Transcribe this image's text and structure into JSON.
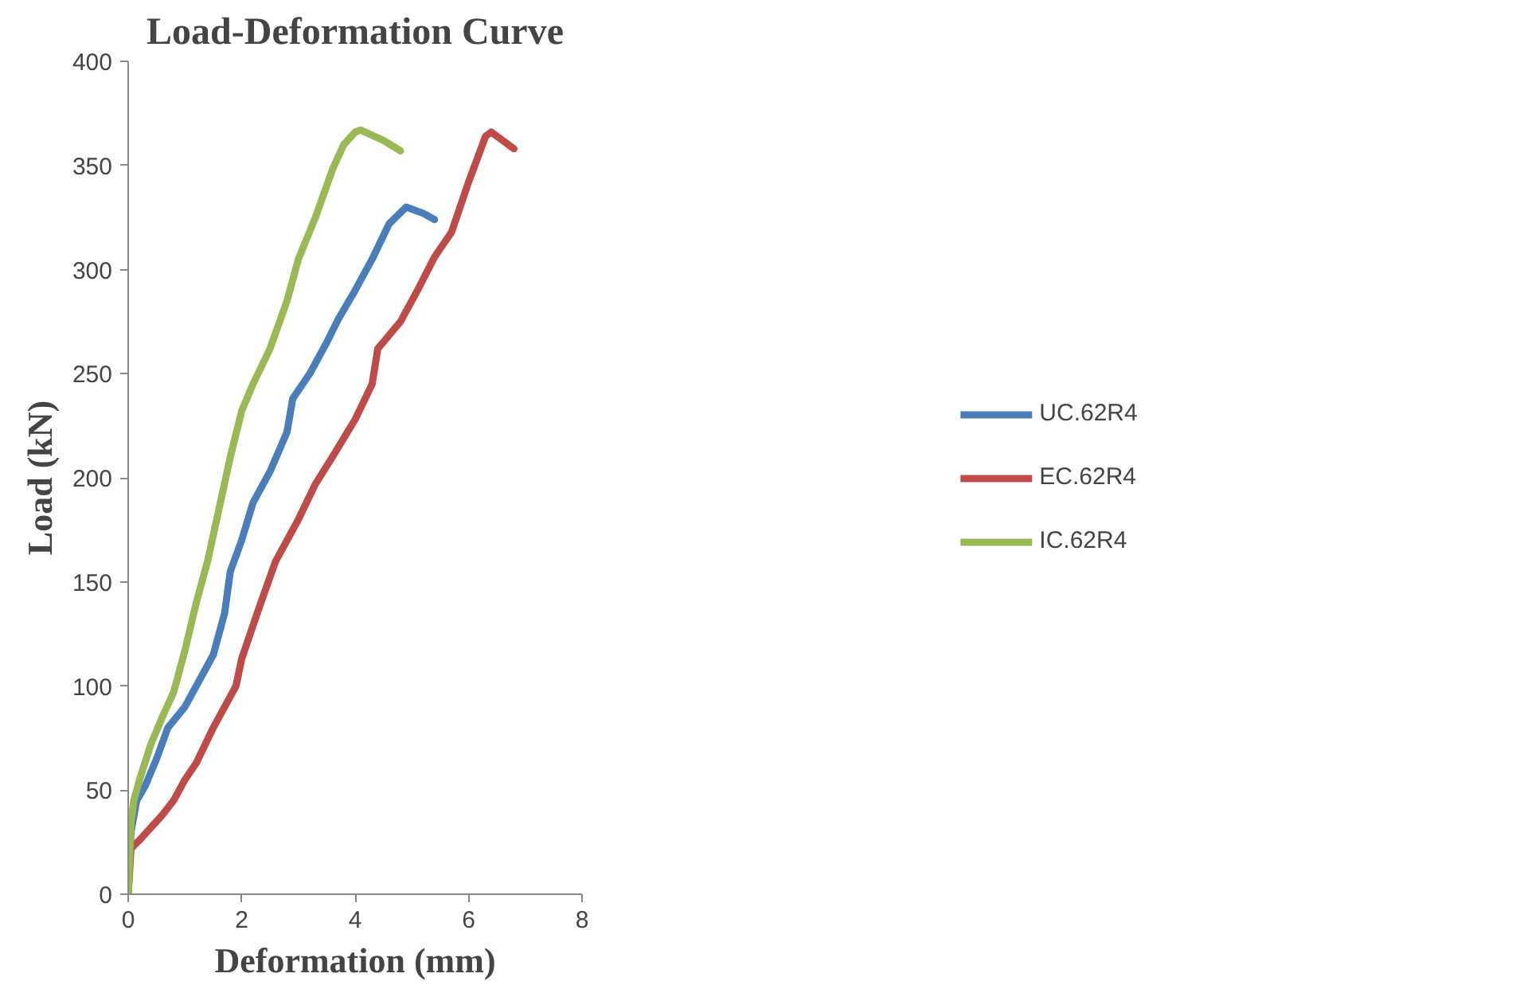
{
  "chart_data": {
    "type": "line",
    "title": "Load-Deformation Curve",
    "xlabel": "Deformation (mm)",
    "ylabel": "Load (kN)",
    "xlim": [
      0,
      8
    ],
    "xticks": [
      0,
      2,
      4,
      6,
      8
    ],
    "ylim": [
      0,
      400
    ],
    "yticks": [
      0,
      50,
      100,
      150,
      200,
      250,
      300,
      350,
      400
    ],
    "grid": false,
    "legend": "right",
    "marker": "none",
    "line_style": "solid",
    "series": [
      {
        "name": "UC.62R4",
        "color": "#4a7ebb",
        "x": [
          0,
          0.05,
          0.15,
          0.3,
          0.5,
          0.7,
          1,
          1.2,
          1.5,
          1.7,
          1.8,
          2,
          2.2,
          2.5,
          2.8,
          2.9,
          3.2,
          3.5,
          3.7,
          4,
          4.3,
          4.6,
          4.9,
          5.2,
          5.4
        ],
        "values": [
          0,
          30,
          45,
          52,
          65,
          80,
          90,
          100,
          115,
          135,
          155,
          170,
          188,
          203,
          222,
          238,
          250,
          265,
          276,
          290,
          305,
          322,
          330,
          327,
          324
        ]
      },
      {
        "name": "EC.62R4",
        "color": "#be4b48",
        "x": [
          0,
          0.05,
          0.2,
          0.4,
          0.6,
          0.8,
          1,
          1.2,
          1.5,
          1.8,
          1.9,
          2,
          2.3,
          2.6,
          3,
          3.3,
          3.6,
          4,
          4.3,
          4.4,
          4.8,
          5.1,
          5.4,
          5.7,
          6,
          6.3,
          6.4,
          6.8
        ],
        "values": [
          0,
          22,
          26,
          32,
          38,
          45,
          55,
          63,
          80,
          95,
          100,
          113,
          137,
          160,
          180,
          197,
          210,
          228,
          245,
          262,
          275,
          290,
          306,
          318,
          342,
          364,
          366,
          358
        ]
      },
      {
        "name": "IC.62R4",
        "color": "#98b954",
        "x": [
          0,
          0.05,
          0.1,
          0.2,
          0.4,
          0.6,
          0.8,
          1,
          1.2,
          1.4,
          1.6,
          1.8,
          2,
          2.2,
          2.5,
          2.8,
          3,
          3.3,
          3.6,
          3.8,
          4,
          4.1,
          4.5,
          4.8
        ],
        "values": [
          0,
          35,
          45,
          55,
          72,
          85,
          97,
          117,
          140,
          160,
          185,
          210,
          232,
          245,
          262,
          285,
          305,
          325,
          348,
          360,
          366,
          367,
          362,
          357
        ]
      }
    ]
  }
}
